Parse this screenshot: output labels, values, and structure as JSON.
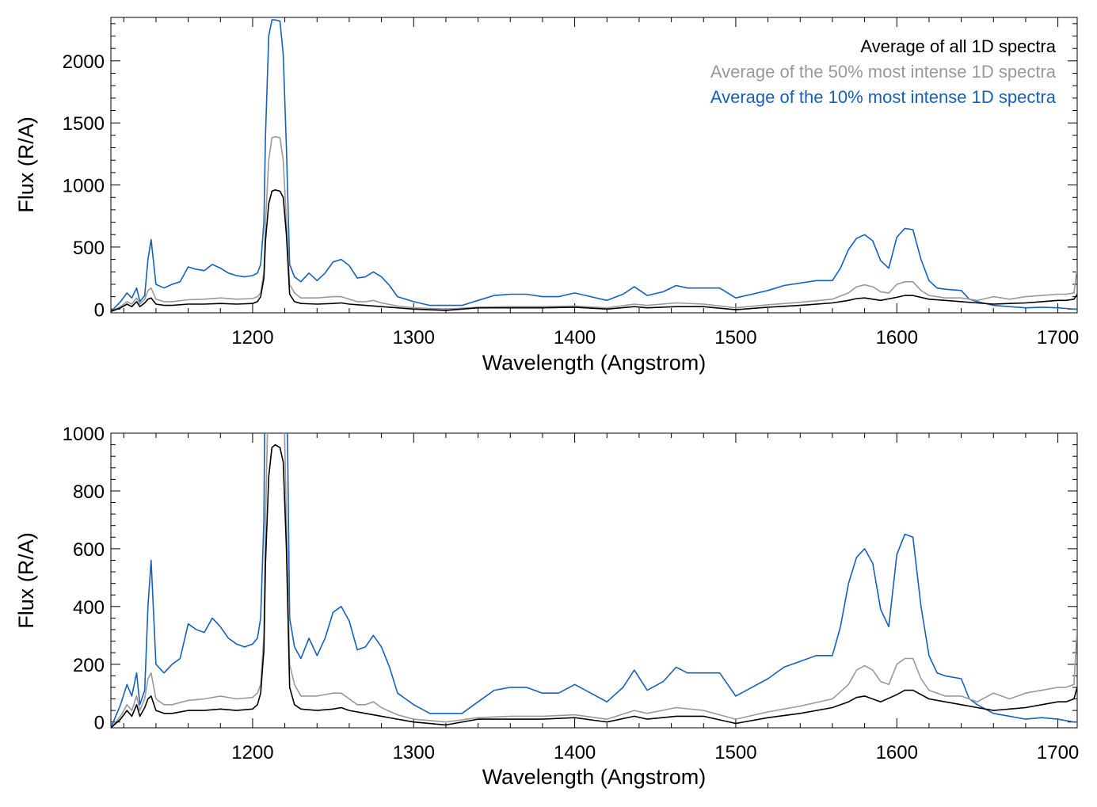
{
  "chart_data": [
    {
      "type": "line",
      "panel": "top",
      "xlabel": "Wavelength (Angstrom)",
      "ylabel": "Flux (R/A)",
      "xlim": [
        1112,
        1712
      ],
      "ylim": [
        -30,
        2350
      ],
      "xticks": [
        1200,
        1300,
        1400,
        1500,
        1600,
        1700
      ],
      "yticks": [
        0,
        500,
        1000,
        1500,
        2000
      ],
      "legend": [
        {
          "label": "Average of all 1D spectra",
          "color": "#000000"
        },
        {
          "label": "Average of the 50% most intense 1D spectra",
          "color": "#999999"
        },
        {
          "label": "Average of the 10% most intense 1D spectra",
          "color": "#1560bd"
        }
      ],
      "legend_position": "top-right",
      "series": [
        {
          "name": "Average of the 10% most intense 1D spectra",
          "color": "#1560bd",
          "x": [
            1112,
            1118,
            1122,
            1125,
            1128,
            1130,
            1133,
            1135,
            1137,
            1140,
            1145,
            1150,
            1155,
            1160,
            1165,
            1170,
            1175,
            1180,
            1185,
            1190,
            1195,
            1200,
            1203,
            1205,
            1207,
            1208,
            1210,
            1212,
            1214,
            1217,
            1219,
            1221,
            1223,
            1226,
            1230,
            1235,
            1240,
            1245,
            1250,
            1255,
            1260,
            1265,
            1270,
            1275,
            1280,
            1285,
            1290,
            1300,
            1310,
            1320,
            1330,
            1340,
            1350,
            1360,
            1370,
            1380,
            1390,
            1400,
            1410,
            1420,
            1430,
            1437,
            1445,
            1455,
            1463,
            1470,
            1480,
            1490,
            1500,
            1510,
            1520,
            1530,
            1540,
            1550,
            1560,
            1565,
            1570,
            1575,
            1580,
            1585,
            1590,
            1595,
            1600,
            1605,
            1610,
            1615,
            1620,
            1625,
            1630,
            1640,
            1645,
            1650,
            1660,
            1670,
            1680,
            1690,
            1700,
            1705,
            1710,
            1712
          ],
          "values": [
            -20,
            60,
            130,
            90,
            170,
            60,
            110,
            400,
            560,
            200,
            170,
            200,
            220,
            340,
            320,
            310,
            360,
            330,
            290,
            270,
            260,
            270,
            290,
            360,
            700,
            1400,
            2200,
            2330,
            2330,
            2320,
            2050,
            1300,
            360,
            260,
            220,
            290,
            230,
            290,
            380,
            400,
            350,
            250,
            260,
            300,
            260,
            190,
            100,
            60,
            30,
            30,
            30,
            70,
            110,
            120,
            120,
            100,
            100,
            130,
            100,
            70,
            120,
            180,
            110,
            140,
            190,
            170,
            170,
            170,
            90,
            120,
            150,
            190,
            210,
            230,
            230,
            330,
            480,
            570,
            600,
            550,
            390,
            330,
            580,
            650,
            640,
            400,
            230,
            170,
            160,
            150,
            80,
            60,
            30,
            20,
            10,
            15,
            10,
            5,
            0,
            0
          ]
        },
        {
          "name": "Average of the 50% most intense 1D spectra",
          "color": "#999999",
          "x": [
            1112,
            1118,
            1122,
            1125,
            1128,
            1130,
            1133,
            1135,
            1137,
            1140,
            1145,
            1150,
            1160,
            1170,
            1180,
            1190,
            1200,
            1203,
            1205,
            1207,
            1208,
            1210,
            1212,
            1214,
            1217,
            1219,
            1221,
            1223,
            1226,
            1230,
            1240,
            1250,
            1255,
            1260,
            1265,
            1270,
            1275,
            1280,
            1290,
            1300,
            1320,
            1340,
            1360,
            1380,
            1400,
            1420,
            1437,
            1445,
            1463,
            1480,
            1500,
            1520,
            1540,
            1560,
            1570,
            1575,
            1580,
            1585,
            1590,
            1595,
            1600,
            1605,
            1610,
            1615,
            1620,
            1630,
            1640,
            1650,
            1660,
            1670,
            1680,
            1690,
            1700,
            1705,
            1710,
            1712
          ],
          "values": [
            -20,
            20,
            60,
            40,
            90,
            40,
            80,
            150,
            170,
            80,
            60,
            60,
            75,
            80,
            90,
            80,
            85,
            100,
            130,
            300,
            700,
            1200,
            1380,
            1390,
            1380,
            1200,
            700,
            200,
            130,
            90,
            90,
            100,
            100,
            80,
            60,
            60,
            70,
            50,
            25,
            10,
            0,
            15,
            20,
            20,
            25,
            10,
            40,
            30,
            50,
            40,
            10,
            35,
            55,
            80,
            130,
            180,
            195,
            180,
            140,
            130,
            200,
            220,
            220,
            150,
            110,
            90,
            90,
            70,
            100,
            80,
            100,
            110,
            120,
            120,
            130,
            330
          ]
        },
        {
          "name": "Average of all 1D spectra",
          "color": "#000000",
          "x": [
            1112,
            1118,
            1122,
            1125,
            1128,
            1130,
            1133,
            1135,
            1137,
            1140,
            1145,
            1150,
            1160,
            1170,
            1180,
            1190,
            1200,
            1203,
            1205,
            1207,
            1208,
            1210,
            1212,
            1214,
            1217,
            1219,
            1221,
            1223,
            1226,
            1230,
            1240,
            1250,
            1255,
            1260,
            1270,
            1280,
            1290,
            1300,
            1320,
            1340,
            1360,
            1380,
            1400,
            1420,
            1437,
            1445,
            1463,
            1480,
            1500,
            1520,
            1540,
            1560,
            1570,
            1575,
            1580,
            1590,
            1600,
            1605,
            1610,
            1620,
            1630,
            1640,
            1650,
            1660,
            1670,
            1680,
            1690,
            1700,
            1705,
            1710,
            1712
          ],
          "values": [
            -20,
            10,
            40,
            20,
            60,
            20,
            50,
            80,
            90,
            40,
            30,
            30,
            40,
            40,
            45,
            40,
            45,
            60,
            100,
            250,
            550,
            850,
            950,
            960,
            950,
            900,
            600,
            120,
            60,
            45,
            40,
            45,
            50,
            40,
            30,
            20,
            10,
            0,
            -10,
            10,
            10,
            10,
            15,
            0,
            20,
            10,
            20,
            20,
            -5,
            15,
            30,
            50,
            70,
            85,
            90,
            70,
            95,
            110,
            110,
            80,
            70,
            60,
            50,
            40,
            45,
            50,
            60,
            70,
            70,
            80,
            120
          ]
        }
      ]
    },
    {
      "type": "line",
      "panel": "bottom",
      "xlabel": "Wavelength (Angstrom)",
      "ylabel": "Flux (R/A)",
      "xlim": [
        1112,
        1712
      ],
      "ylim": [
        -20,
        1000
      ],
      "xticks": [
        1200,
        1300,
        1400,
        1500,
        1600,
        1700
      ],
      "yticks": [
        0,
        200,
        400,
        600,
        800,
        1000
      ],
      "series_note": "same three averaged spectra as the top panel, y-axis zoomed to 1000"
    }
  ]
}
